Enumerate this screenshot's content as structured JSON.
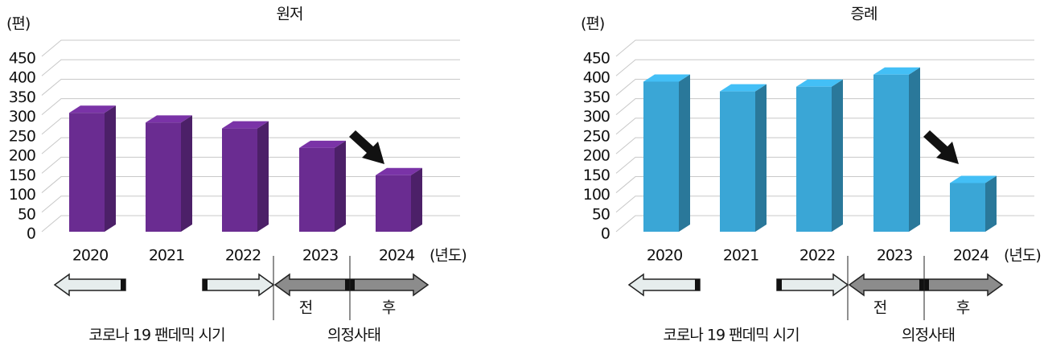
{
  "chart_data": [
    {
      "type": "bar3d",
      "title": "원저",
      "y_label": "(편)",
      "x_unit": "(년도)",
      "categories": [
        "2020",
        "2021",
        "2022",
        "2023",
        "2024"
      ],
      "values": [
        305,
        280,
        265,
        215,
        145
      ],
      "color": "#6a2c91",
      "ylim": [
        0,
        450
      ],
      "yticks": [
        0,
        50,
        100,
        150,
        200,
        250,
        300,
        350,
        400,
        450
      ],
      "grid": true,
      "annotations": [
        "전",
        "후",
        "코로나 19 팬데믹 시기",
        "의정사태"
      ]
    },
    {
      "type": "bar3d",
      "title": "증례",
      "y_label": "(편)",
      "x_unit": "(년도)",
      "categories": [
        "2020",
        "2021",
        "2022",
        "2023",
        "2024"
      ],
      "values": [
        385,
        360,
        372,
        403,
        125
      ],
      "color": "#3aa6d6",
      "ylim": [
        0,
        450
      ],
      "yticks": [
        0,
        50,
        100,
        150,
        200,
        250,
        300,
        350,
        400,
        450
      ],
      "grid": true,
      "annotations": [
        "전",
        "후",
        "코로나 19 팬데믹 시기",
        "의정사태"
      ]
    }
  ]
}
